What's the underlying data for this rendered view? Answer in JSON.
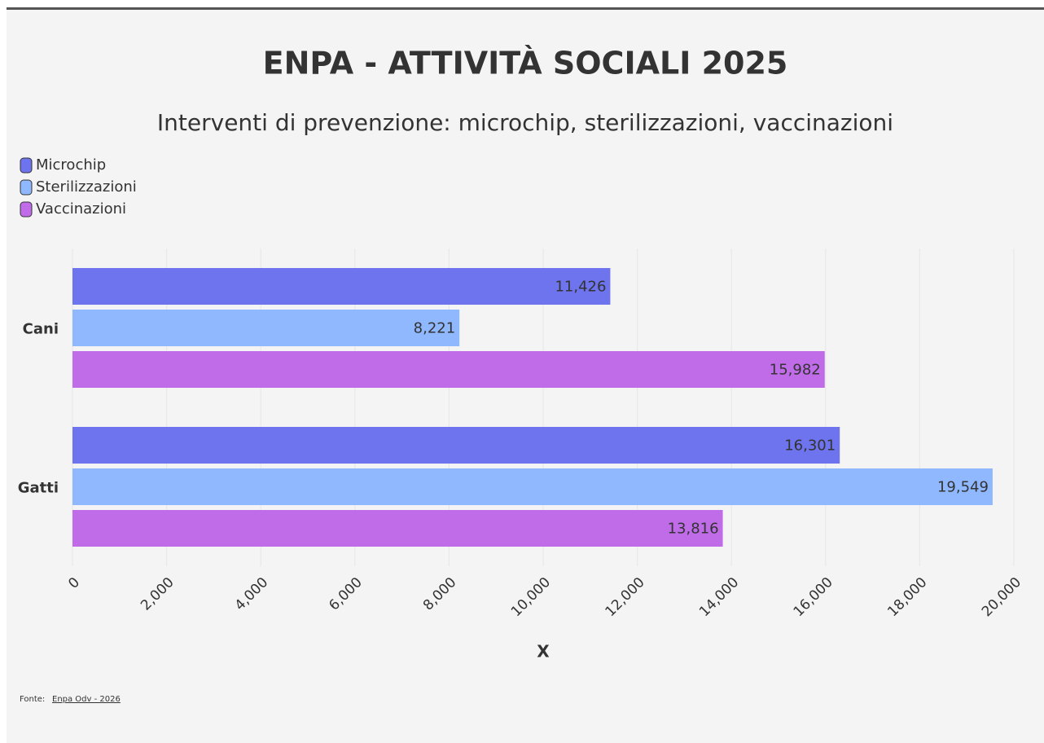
{
  "chart_data": {
    "type": "bar",
    "orientation": "horizontal",
    "title": "ENPA - ATTIVITÀ SOCIALI 2025",
    "subtitle": "Interventi di prevenzione: microchip, sterilizzazioni, vaccinazioni",
    "categories": [
      "Cani",
      "Gatti"
    ],
    "series": [
      {
        "name": "Microchip",
        "color": "#6e73ee",
        "values": [
          11426,
          16301
        ],
        "value_labels": [
          "11,426",
          "16,301"
        ]
      },
      {
        "name": "Sterilizzazioni",
        "color": "#8fb8ff",
        "values": [
          8221,
          19549
        ],
        "value_labels": [
          "8,221",
          "19,549"
        ]
      },
      {
        "name": "Vaccinazioni",
        "color": "#c06ce8",
        "values": [
          15982,
          13816
        ],
        "value_labels": [
          "15,982",
          "13,816"
        ]
      }
    ],
    "xlim": [
      0,
      20000
    ],
    "xticks": [
      0,
      {
        "value": 2000,
        "label": "2,000"
      },
      {
        "value": 4000,
        "label": "4,000"
      },
      {
        "value": 6000,
        "label": "6,000"
      },
      {
        "value": 8000,
        "label": "8,000"
      },
      {
        "value": 10000,
        "label": "10,000"
      },
      {
        "value": 12000,
        "label": "12,000"
      },
      {
        "value": 14000,
        "label": "14,000"
      },
      {
        "value": 16000,
        "label": "16,000"
      },
      {
        "value": 18000,
        "label": "18,000"
      },
      {
        "value": 20000,
        "label": "20,000"
      }
    ],
    "xlabel": "X",
    "grid": true,
    "legend": "top-left",
    "source_label": "Fonte:",
    "source_link": "Enpa Odv - 2026"
  }
}
